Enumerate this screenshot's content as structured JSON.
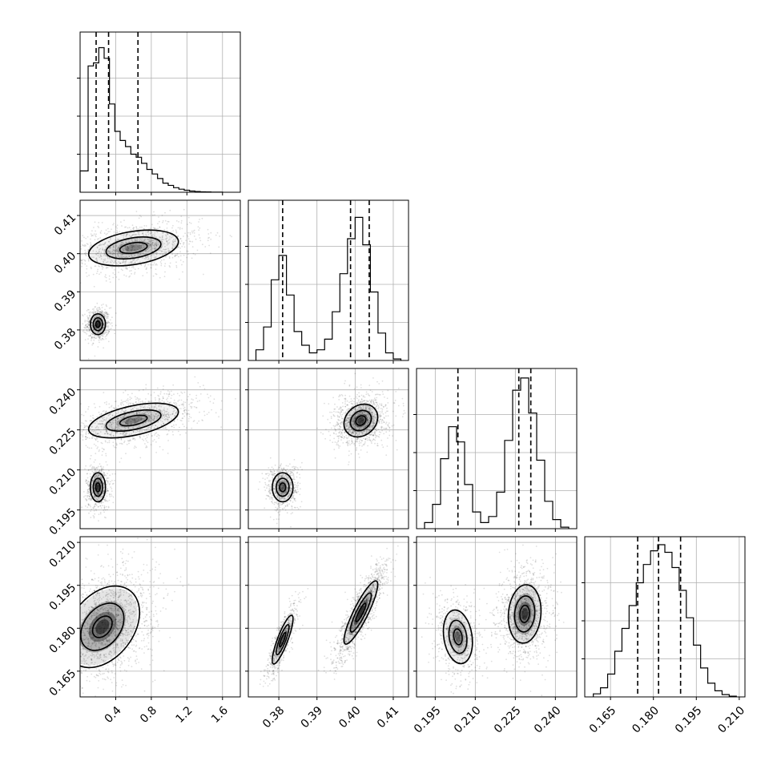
{
  "chart_data": {
    "type": "corner",
    "colors": {
      "line": "#000000",
      "scatter": "#000000",
      "grid": "#b0b0b0"
    },
    "grid": true,
    "params": [
      {
        "range": [
          0,
          1.8
        ],
        "ticks": [
          0.4,
          0.8,
          1.2,
          1.6
        ],
        "tick_labels": [
          "0.4",
          "0.8",
          "1.2",
          "1.6"
        ],
        "quantiles": [
          0.18,
          0.32,
          0.65
        ],
        "hist": {
          "edges": [
            0,
            0.09,
            0.15,
            0.21,
            0.27,
            0.33,
            0.39,
            0.45,
            0.51,
            0.57,
            0.63,
            0.69,
            0.75,
            0.81,
            0.87,
            0.93,
            0.99,
            1.05,
            1.11,
            1.17,
            1.23,
            1.29,
            1.35,
            1.41,
            1.47,
            1.53,
            1.6
          ],
          "counts": [
            0.14,
            0.83,
            0.85,
            0.95,
            0.88,
            0.58,
            0.4,
            0.34,
            0.3,
            0.25,
            0.23,
            0.19,
            0.15,
            0.12,
            0.09,
            0.06,
            0.045,
            0.03,
            0.02,
            0.013,
            0.008,
            0.005,
            0.003,
            0.002,
            0.001,
            0.001
          ]
        }
      },
      {
        "range": [
          0.372,
          0.414
        ],
        "ticks": [
          0.38,
          0.39,
          0.4,
          0.41
        ],
        "tick_labels": [
          "0.38",
          "0.39",
          "0.40",
          "0.41"
        ],
        "quantiles": [
          0.381,
          0.3988,
          0.4037
        ],
        "hist": {
          "edges": [
            0.374,
            0.376,
            0.378,
            0.38,
            0.382,
            0.384,
            0.386,
            0.388,
            0.39,
            0.392,
            0.394,
            0.396,
            0.398,
            0.4,
            0.402,
            0.404,
            0.406,
            0.408,
            0.41,
            0.412
          ],
          "counts": [
            0.07,
            0.22,
            0.53,
            0.69,
            0.43,
            0.19,
            0.1,
            0.05,
            0.07,
            0.14,
            0.32,
            0.57,
            0.8,
            0.94,
            0.76,
            0.45,
            0.18,
            0.05,
            0.01
          ]
        }
      },
      {
        "range": [
          0.188,
          0.248
        ],
        "ticks": [
          0.195,
          0.21,
          0.225,
          0.24
        ],
        "tick_labels": [
          "0.195",
          "0.210",
          "0.225",
          "0.240"
        ],
        "quantiles": [
          0.2035,
          0.2263,
          0.2308
        ],
        "hist": {
          "edges": [
            0.191,
            0.194,
            0.197,
            0.2,
            0.203,
            0.206,
            0.209,
            0.212,
            0.215,
            0.218,
            0.221,
            0.224,
            0.227,
            0.23,
            0.233,
            0.236,
            0.239,
            0.242,
            0.245
          ],
          "counts": [
            0.04,
            0.16,
            0.46,
            0.67,
            0.57,
            0.29,
            0.11,
            0.04,
            0.08,
            0.24,
            0.58,
            0.91,
            0.99,
            0.76,
            0.45,
            0.18,
            0.06,
            0.01
          ]
        }
      },
      {
        "range": [
          0.156,
          0.212
        ],
        "ticks": [
          0.165,
          0.18,
          0.195,
          0.21
        ],
        "tick_labels": [
          "0.165",
          "0.180",
          "0.195",
          "0.210"
        ],
        "quantiles": [
          0.1745,
          0.1818,
          0.1895
        ],
        "hist": {
          "edges": [
            0.159,
            0.1615,
            0.164,
            0.1665,
            0.169,
            0.1715,
            0.174,
            0.1765,
            0.179,
            0.1815,
            0.184,
            0.1865,
            0.189,
            0.1915,
            0.194,
            0.1965,
            0.199,
            0.2015,
            0.204,
            0.2065,
            0.209
          ],
          "counts": [
            0.02,
            0.06,
            0.15,
            0.3,
            0.45,
            0.6,
            0.75,
            0.87,
            0.96,
            1.0,
            0.95,
            0.85,
            0.7,
            0.52,
            0.34,
            0.19,
            0.09,
            0.04,
            0.015,
            0.005
          ]
        }
      }
    ],
    "pairs": [
      {
        "x": 0,
        "y": 1,
        "modes": [
          {
            "cx": 0.2,
            "cy": 0.3815,
            "sx": 0.05,
            "sy": 0.0016,
            "w": 0.35,
            "peak": 1.0,
            "rho": 0.0,
            "levels": [
              0.5,
              1.05,
              1.7
            ]
          },
          {
            "cx": 0.6,
            "cy": 0.4015,
            "sx": 0.28,
            "sy": 0.0026,
            "w": 0.65,
            "peak": 0.55,
            "rho": 0.35,
            "levels": [
              0.55,
              1.1,
              1.8
            ]
          }
        ]
      },
      {
        "x": 0,
        "y": 2,
        "modes": [
          {
            "cx": 0.2,
            "cy": 0.2035,
            "sx": 0.05,
            "sy": 0.0032,
            "w": 0.35,
            "peak": 1.0,
            "rho": 0.0,
            "levels": [
              0.5,
              1.05,
              1.7
            ]
          },
          {
            "cx": 0.6,
            "cy": 0.2285,
            "sx": 0.28,
            "sy": 0.0036,
            "w": 0.65,
            "peak": 0.55,
            "rho": 0.5,
            "levels": [
              0.55,
              1.1,
              1.8
            ]
          }
        ]
      },
      {
        "x": 0,
        "y": 3,
        "modes": [
          {
            "cx": 0.25,
            "cy": 0.1805,
            "sx": 0.22,
            "sy": 0.0075,
            "w": 1.0,
            "peak": 1.0,
            "rho": 0.35,
            "levels": [
              0.5,
              1.1,
              1.9
            ]
          }
        ]
      },
      {
        "x": 1,
        "y": 2,
        "modes": [
          {
            "cx": 0.381,
            "cy": 0.2035,
            "sx": 0.0016,
            "sy": 0.0032,
            "w": 0.35,
            "peak": 0.7,
            "rho": 0.0,
            "levels": [
              0.5,
              1.05,
              1.7
            ]
          },
          {
            "cx": 0.4015,
            "cy": 0.2285,
            "sx": 0.0026,
            "sy": 0.0036,
            "w": 0.65,
            "peak": 1.0,
            "rho": 0.2,
            "levels": [
              0.5,
              1.05,
              1.7
            ]
          }
        ]
      },
      {
        "x": 1,
        "y": 3,
        "modes": [
          {
            "cx": 0.381,
            "cy": 0.176,
            "sx": 0.0016,
            "sy": 0.005,
            "w": 0.35,
            "peak": 0.7,
            "rho": 0.85,
            "levels": [
              0.5,
              1.05,
              1.7
            ]
          },
          {
            "cx": 0.4015,
            "cy": 0.1855,
            "sx": 0.0026,
            "sy": 0.0065,
            "w": 0.65,
            "peak": 1.0,
            "rho": 0.88,
            "levels": [
              0.5,
              1.05,
              1.7
            ]
          }
        ]
      },
      {
        "x": 2,
        "y": 3,
        "modes": [
          {
            "cx": 0.2035,
            "cy": 0.177,
            "sx": 0.0032,
            "sy": 0.0055,
            "w": 0.35,
            "peak": 0.7,
            "rho": -0.2,
            "levels": [
              0.5,
              1.05,
              1.7
            ]
          },
          {
            "cx": 0.2285,
            "cy": 0.185,
            "sx": 0.0036,
            "sy": 0.006,
            "w": 0.65,
            "peak": 1.0,
            "rho": 0.1,
            "levels": [
              0.5,
              1.05,
              1.7
            ]
          }
        ]
      }
    ]
  }
}
